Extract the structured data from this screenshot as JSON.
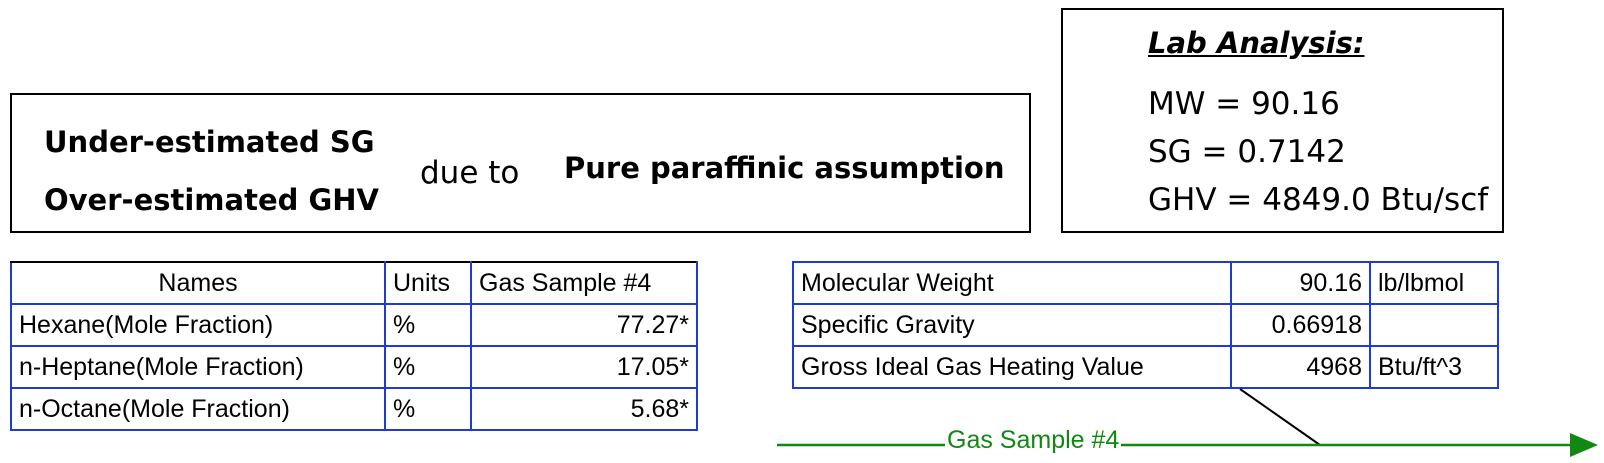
{
  "note": {
    "line1": "Under-estimated SG",
    "line2": "Over-estimated GHV",
    "connector": "due to",
    "reason": "Pure paraffinic assumption"
  },
  "lab": {
    "title": "Lab Analysis:",
    "mw": "MW = 90.16",
    "sg": "SG = 0.7142",
    "ghv": "GHV = 4849.0 Btu/scf"
  },
  "composition": {
    "headers": [
      "Names",
      "Units",
      "Gas Sample #4"
    ],
    "rows": [
      {
        "name": "Hexane(Mole Fraction)",
        "unit": "%",
        "value": "77.27*"
      },
      {
        "name": "n-Heptane(Mole Fraction)",
        "unit": "%",
        "value": "17.05*"
      },
      {
        "name": "n-Octane(Mole Fraction)",
        "unit": "%",
        "value": "5.68*"
      }
    ]
  },
  "properties": {
    "rows": [
      {
        "name": "Molecular Weight",
        "value": "90.16",
        "unit": "lb/lbmol"
      },
      {
        "name": "Specific Gravity",
        "value": "0.66918",
        "unit": ""
      },
      {
        "name": "Gross Ideal Gas Heating Value",
        "value": "4968",
        "unit": "Btu/ft^3"
      }
    ]
  },
  "stream": {
    "label": "Gas Sample #4",
    "color": "#118811"
  },
  "colors": {
    "grid_blue": "#1f3bd6",
    "stream_green": "#118811"
  }
}
